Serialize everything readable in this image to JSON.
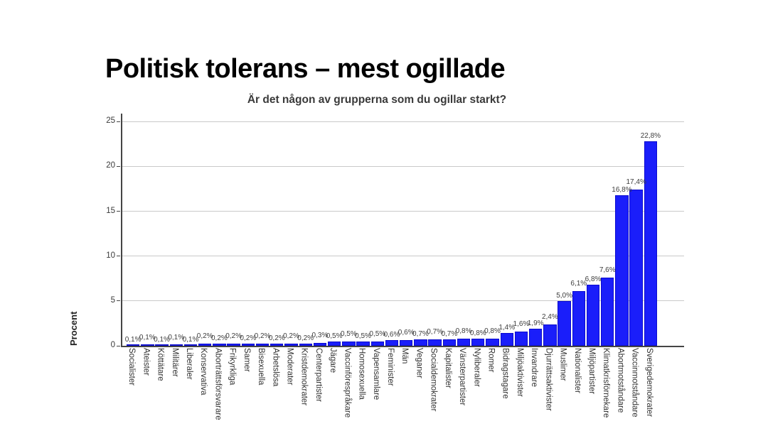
{
  "slide": {
    "title": "Politisk tolerans – mest ogillade"
  },
  "chart_data": {
    "type": "bar",
    "title": "Är det någon av grupperna som du ogillar starkt?",
    "ylabel": "Procent",
    "xlabel": "",
    "ylim": [
      0,
      25.9
    ],
    "yticks": [
      0,
      5,
      10,
      15,
      20,
      25
    ],
    "grid": true,
    "legend": false,
    "bar_color": "#1a1efa",
    "bar_border_color": "#0b0bce",
    "gridline_color": "#c9c9c9",
    "axis_color": "#454545",
    "text_color": "#3a3a3a",
    "categories": [
      "Socialister",
      "Ateister",
      "Köttätare",
      "Militärer",
      "Liberaler",
      "Konservativa",
      "Aborträttsförsvarare",
      "Frikyrkliga",
      "Samer",
      "Bisexuella",
      "Arbetslösa",
      "Moderater",
      "Kristdemokrater",
      "Centerpartister",
      "Jägare",
      "Vaccinförespråkare",
      "Homosexuella",
      "Vapensamlare",
      "Feminister",
      "Män",
      "Veganer",
      "Socialdemokrater",
      "Kapitalister",
      "Vänsterpartister",
      "Nyliberaler",
      "Romer",
      "Bidragstagare",
      "Miljöaktivister",
      "Invandrare",
      "Djurrättsaktivister",
      "Muslimer",
      "Nationalister",
      "Miljöpartister",
      "Klimatkrisförnekare",
      "Abortmotståndare",
      "Vaccinmotståndare",
      "Sverigedemokrater"
    ],
    "values": [
      0.1,
      0.1,
      0.1,
      0.1,
      0.1,
      0.2,
      0.2,
      0.2,
      0.2,
      0.2,
      0.2,
      0.2,
      0.2,
      0.3,
      0.5,
      0.5,
      0.5,
      0.5,
      0.6,
      0.6,
      0.7,
      0.7,
      0.7,
      0.8,
      0.8,
      0.8,
      1.4,
      1.6,
      1.9,
      2.4,
      5.0,
      6.1,
      6.8,
      7.6,
      16.8,
      17.4,
      22.8
    ],
    "value_labels": [
      "0,1%",
      "0,1%",
      "0,1%",
      "0,1%",
      "0,1%",
      "0,2%",
      "0,2%",
      "0,2%",
      "0,2%",
      "0,2%",
      "0,2%",
      "0,2%",
      "0,2%",
      "0,3%",
      "0,5%",
      "0,5%",
      "0,5%",
      "0,5%",
      "0,6%",
      "0,6%",
      "0,7%",
      "0,7%",
      "0,7%",
      "0,8%",
      "0,8%",
      "0,8%",
      "1,4%",
      "1,6%",
      "1,9%",
      "2,4%",
      "5,0%",
      "6,1%",
      "6,8%",
      "7,6%",
      "16,8%",
      "17,4%",
      "22,8%"
    ]
  }
}
